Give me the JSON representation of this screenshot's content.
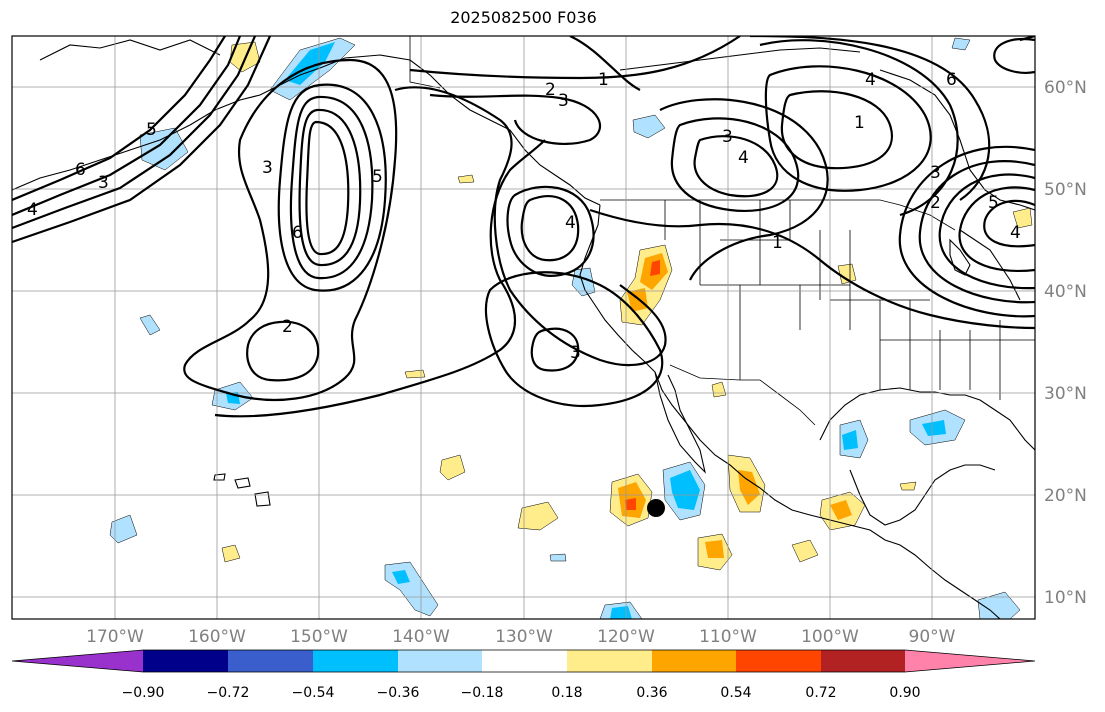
{
  "title": "2025082500 F036",
  "map": {
    "lat_labels": [
      "60°N",
      "50°N",
      "40°N",
      "30°N",
      "20°N",
      "10°N"
    ],
    "lon_labels": [
      "170°W",
      "160°W",
      "150°W",
      "140°W",
      "130°W",
      "120°W",
      "110°W",
      "100°W",
      "90°W"
    ],
    "contour_labels": [
      "1",
      "2",
      "3",
      "4",
      "5",
      "6"
    ],
    "marker_icon": "black-dot-icon"
  },
  "colorbar": {
    "ticks": [
      "−0.90",
      "−0.72",
      "−0.54",
      "−0.36",
      "−0.18",
      "0.18",
      "0.36",
      "0.54",
      "0.72",
      "0.90"
    ],
    "colors": {
      "under": "#9932cc",
      "bins": [
        "#00008b",
        "#3a5fcd",
        "#00bfff",
        "#b0e2ff",
        "#ffffff",
        "#ffec8b",
        "#ffa500",
        "#ff4500",
        "#b22222"
      ],
      "over": "#ff82ab",
      "land_outline": "#000000",
      "ocean": "#ffffff"
    }
  }
}
